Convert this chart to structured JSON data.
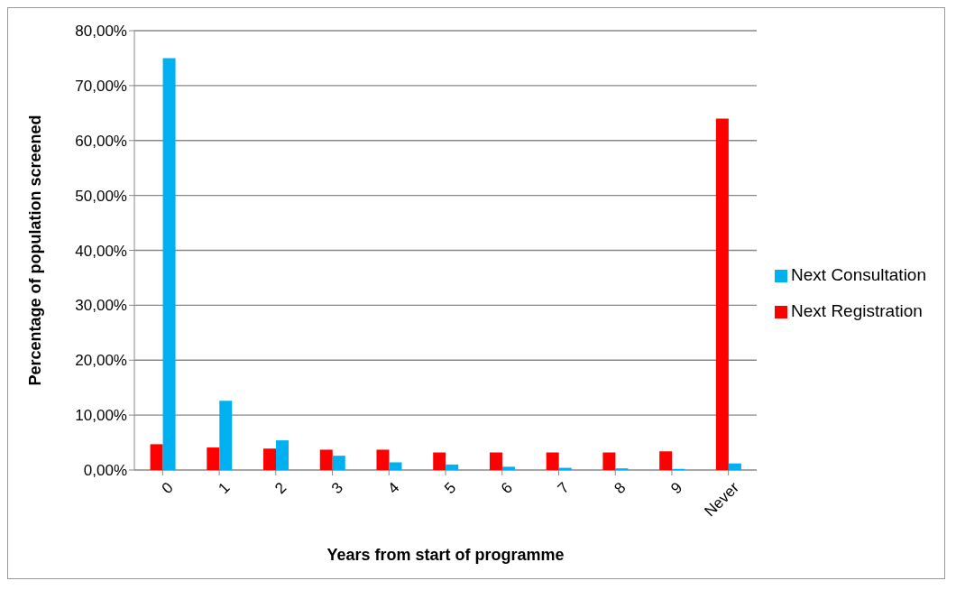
{
  "chart_data": {
    "type": "bar",
    "xlabel": "Years from start of programme",
    "ylabel": "Percentage of population screened",
    "categories": [
      "0",
      "1",
      "2",
      "3",
      "4",
      "5",
      "6",
      "7",
      "8",
      "9",
      "Never"
    ],
    "series": [
      {
        "name": "Next Registration",
        "color": "#ff0000",
        "values": [
          4.7,
          4.1,
          3.9,
          3.7,
          3.7,
          3.2,
          3.2,
          3.2,
          3.2,
          3.4,
          64
        ]
      },
      {
        "name": "Next Consultation",
        "color": "#00b0f0",
        "values": [
          75,
          12.6,
          5.4,
          2.6,
          1.4,
          1.0,
          0.6,
          0.4,
          0.3,
          0.2,
          1.2
        ]
      }
    ],
    "ylim": [
      0,
      80
    ],
    "yticks": [
      {
        "value": 0,
        "label": "0,00%"
      },
      {
        "value": 10,
        "label": "10,00%"
      },
      {
        "value": 20,
        "label": "20,00%"
      },
      {
        "value": 30,
        "label": "30,00%"
      },
      {
        "value": 40,
        "label": "40,00%"
      },
      {
        "value": 50,
        "label": "50,00%"
      },
      {
        "value": 60,
        "label": "60,00%"
      },
      {
        "value": 70,
        "label": "70,00%"
      },
      {
        "value": 80,
        "label": "80,00%"
      }
    ],
    "grid": "y",
    "legend": "right"
  }
}
